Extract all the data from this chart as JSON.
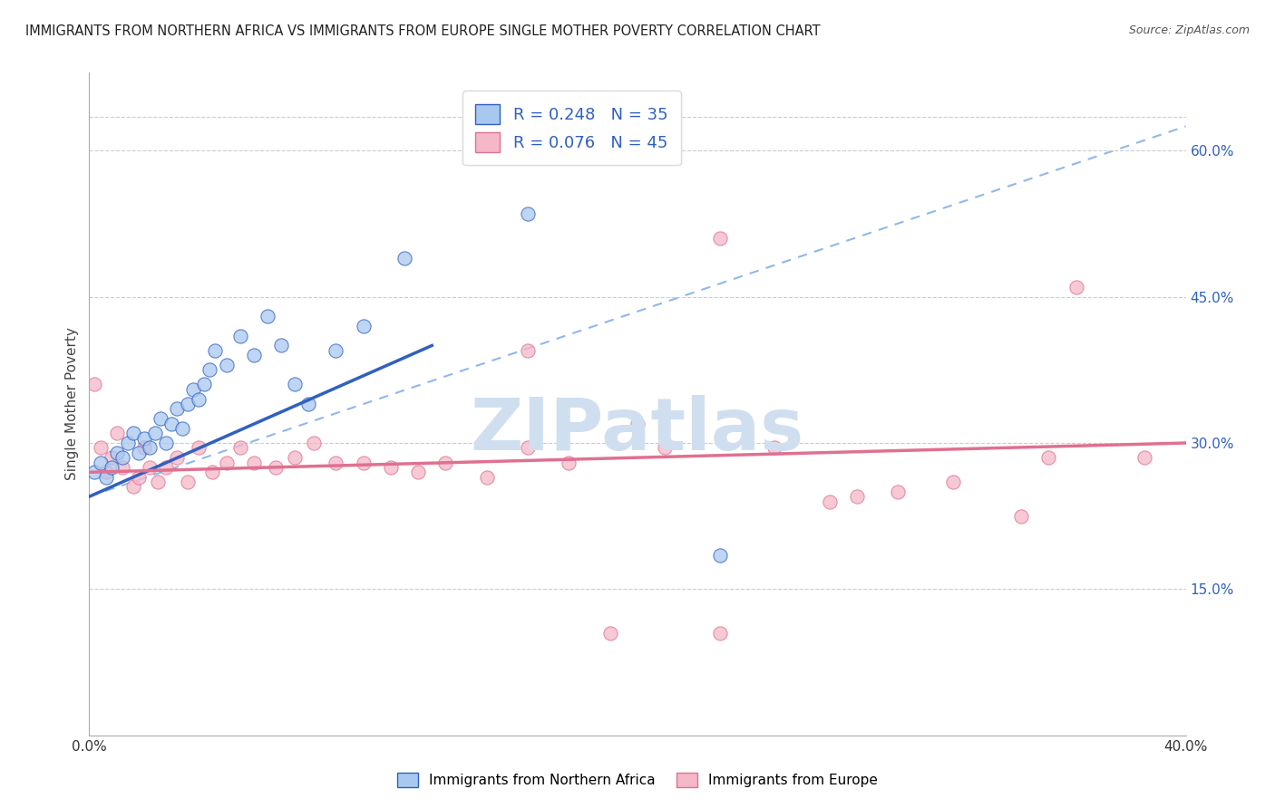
{
  "title": "IMMIGRANTS FROM NORTHERN AFRICA VS IMMIGRANTS FROM EUROPE SINGLE MOTHER POVERTY CORRELATION CHART",
  "source_text": "Source: ZipAtlas.com",
  "ylabel": "Single Mother Poverty",
  "legend_label1": "Immigrants from Northern Africa",
  "legend_label2": "Immigrants from Europe",
  "R1": 0.248,
  "N1": 35,
  "R2": 0.076,
  "N2": 45,
  "xlim": [
    0.0,
    0.4
  ],
  "ylim": [
    0.0,
    0.68
  ],
  "xticks": [
    0.0,
    0.08,
    0.16,
    0.24,
    0.32,
    0.4
  ],
  "xticklabels": [
    "0.0%",
    "",
    "",
    "",
    "",
    "40.0%"
  ],
  "yticks_right": [
    0.15,
    0.3,
    0.45,
    0.6
  ],
  "ytick_labels_right": [
    "15.0%",
    "30.0%",
    "45.0%",
    "60.0%"
  ],
  "color_blue": "#A8C8F0",
  "color_pink": "#F4B8C8",
  "color_blue_line": "#3060C0",
  "color_pink_line": "#E07090",
  "color_dashed": "#90B8E8",
  "watermark_text": "ZIPatlas",
  "watermark_color": "#D0DFF0",
  "blue_dots_x": [
    0.002,
    0.004,
    0.006,
    0.008,
    0.01,
    0.012,
    0.014,
    0.016,
    0.018,
    0.02,
    0.022,
    0.024,
    0.026,
    0.028,
    0.03,
    0.032,
    0.034,
    0.036,
    0.038,
    0.04,
    0.042,
    0.044,
    0.046,
    0.05,
    0.055,
    0.06,
    0.065,
    0.07,
    0.075,
    0.08,
    0.09,
    0.1,
    0.115,
    0.16,
    0.23
  ],
  "blue_dots_y": [
    0.27,
    0.28,
    0.265,
    0.275,
    0.29,
    0.285,
    0.3,
    0.31,
    0.29,
    0.305,
    0.295,
    0.31,
    0.325,
    0.3,
    0.32,
    0.335,
    0.315,
    0.34,
    0.355,
    0.345,
    0.36,
    0.375,
    0.395,
    0.38,
    0.41,
    0.39,
    0.43,
    0.4,
    0.36,
    0.34,
    0.395,
    0.42,
    0.49,
    0.535,
    0.185
  ],
  "pink_dots_x": [
    0.002,
    0.004,
    0.006,
    0.008,
    0.01,
    0.012,
    0.016,
    0.018,
    0.02,
    0.022,
    0.025,
    0.028,
    0.032,
    0.036,
    0.04,
    0.045,
    0.05,
    0.055,
    0.06,
    0.068,
    0.075,
    0.082,
    0.09,
    0.1,
    0.11,
    0.12,
    0.13,
    0.145,
    0.16,
    0.175,
    0.19,
    0.21,
    0.23,
    0.25,
    0.27,
    0.295,
    0.315,
    0.34,
    0.36,
    0.385,
    0.16,
    0.2,
    0.23,
    0.28,
    0.35
  ],
  "pink_dots_y": [
    0.36,
    0.295,
    0.27,
    0.285,
    0.31,
    0.275,
    0.255,
    0.265,
    0.295,
    0.275,
    0.26,
    0.275,
    0.285,
    0.26,
    0.295,
    0.27,
    0.28,
    0.295,
    0.28,
    0.275,
    0.285,
    0.3,
    0.28,
    0.28,
    0.275,
    0.27,
    0.28,
    0.265,
    0.295,
    0.28,
    0.105,
    0.295,
    0.105,
    0.295,
    0.24,
    0.25,
    0.26,
    0.225,
    0.46,
    0.285,
    0.395,
    0.32,
    0.51,
    0.245,
    0.285
  ],
  "blue_line_x0": 0.0,
  "blue_line_y0": 0.245,
  "blue_line_x1": 0.125,
  "blue_line_y1": 0.4,
  "dashed_line_x0": 0.0,
  "dashed_line_y0": 0.245,
  "dashed_line_x1": 0.4,
  "dashed_line_y1": 0.625,
  "pink_line_x0": 0.0,
  "pink_line_y0": 0.27,
  "pink_line_x1": 0.4,
  "pink_line_y1": 0.3,
  "blue_dot_size": 120,
  "pink_dot_size": 120
}
